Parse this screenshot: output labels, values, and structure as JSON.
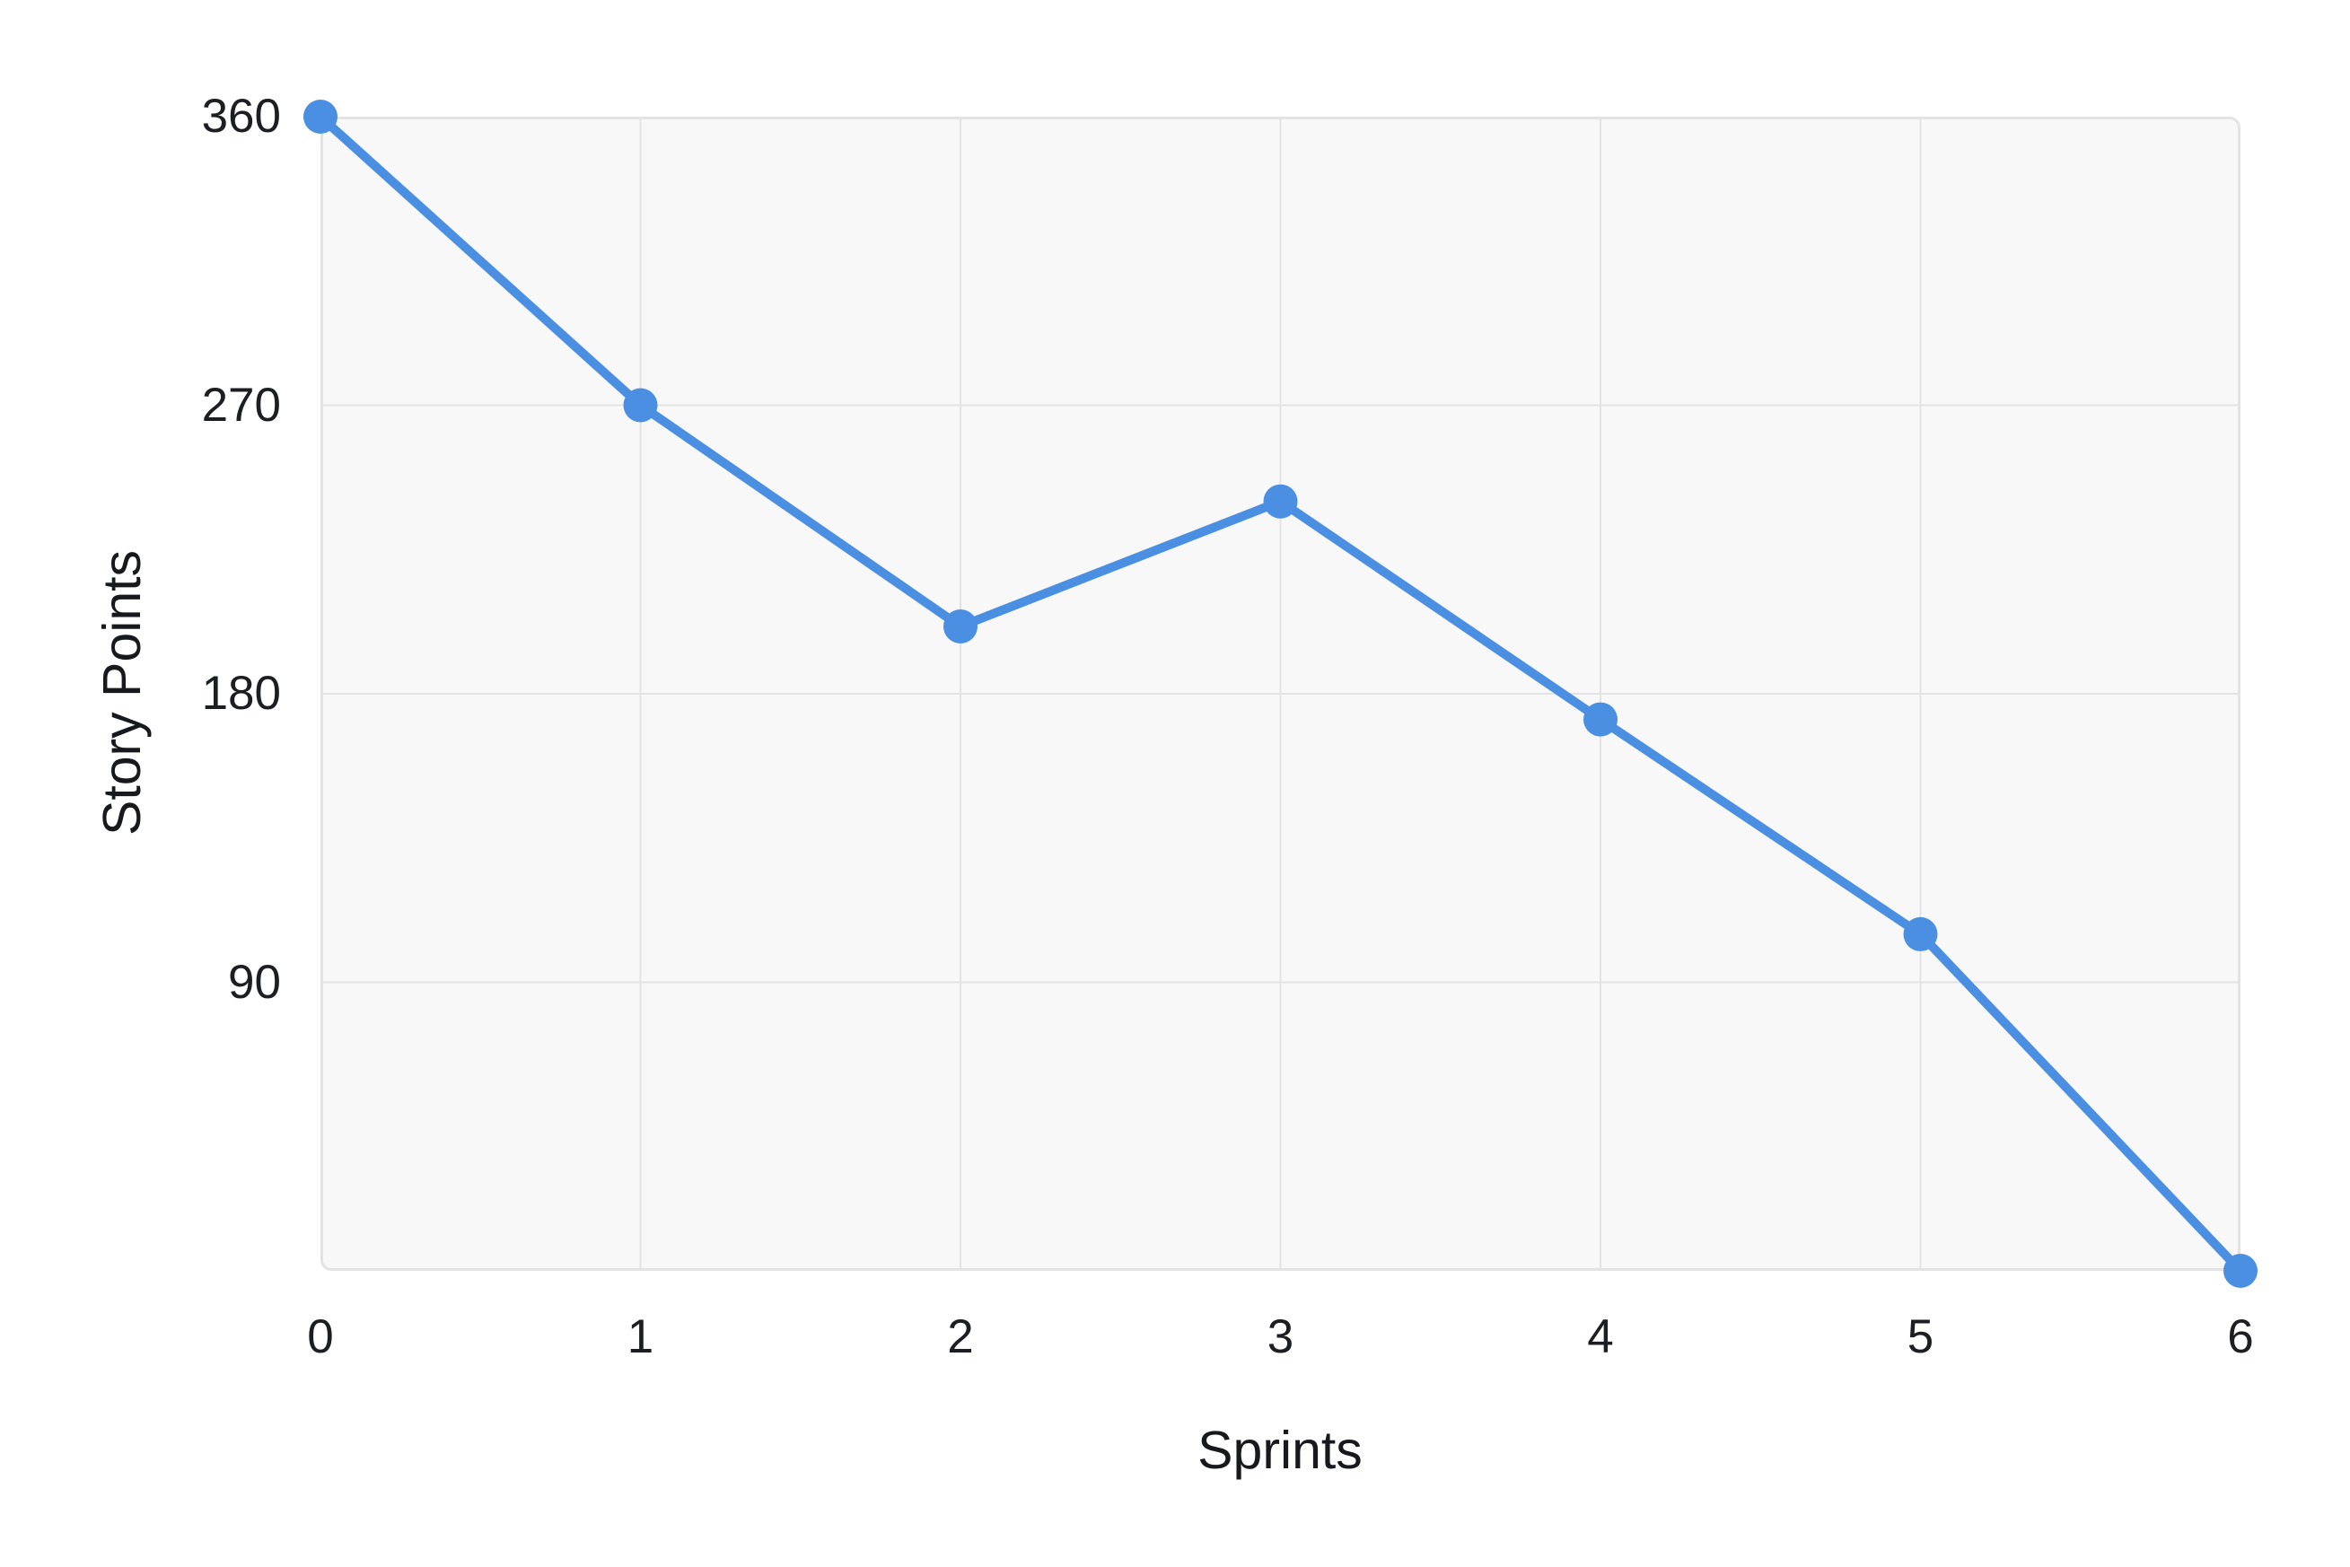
{
  "chart_data": {
    "type": "line",
    "title": "",
    "xlabel": "Sprints",
    "ylabel": "Story Points",
    "categories": [
      0,
      1,
      2,
      3,
      4,
      5,
      6
    ],
    "values": [
      360,
      270,
      201,
      240,
      172,
      105,
      0
    ],
    "x_tick_labels": [
      "0",
      "1",
      "2",
      "3",
      "4",
      "5",
      "6"
    ],
    "y_tick_values": [
      90,
      180,
      270,
      360
    ],
    "xlim": [
      0,
      6
    ],
    "ylim": [
      0,
      360
    ],
    "grid": true,
    "legend": false,
    "point_radius": 19,
    "line_width": 10,
    "colors": {
      "line": "#4a8fe2",
      "point": "#4a8fe2",
      "plot_background": "#f8f8f8",
      "grid_line": "#e3e3e3",
      "text": "#1c1e21",
      "page_background": "#ffffff"
    }
  }
}
